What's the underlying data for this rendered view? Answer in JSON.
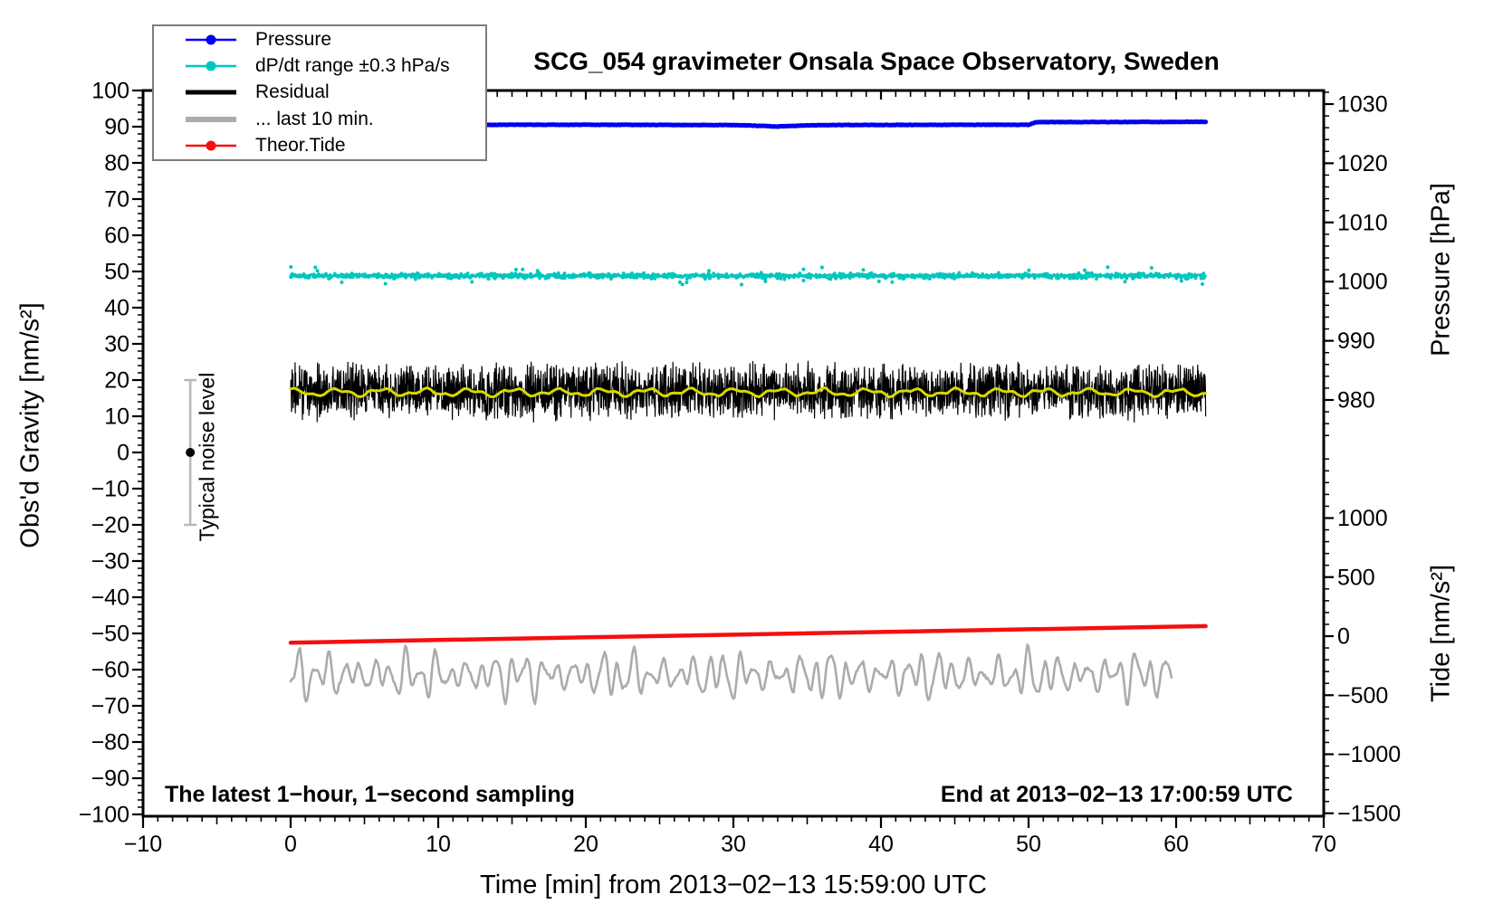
{
  "title": "SCG_054 gravimeter Onsala Space Observatory, Sweden",
  "annotations": {
    "sampling": "The latest 1−hour, 1−second sampling",
    "end_time": "End at 2013−02−13 17:00:59 UTC",
    "noise_level": "Typical noise level"
  },
  "axes": {
    "x": {
      "label": "Time [min] from 2013−02−13 15:59:00 UTC",
      "range": [
        -10,
        70
      ],
      "ticks": [
        -10,
        0,
        10,
        20,
        30,
        40,
        50,
        60,
        70
      ],
      "minor_step": 1,
      "medium_step": 5
    },
    "gravity": {
      "label": "Obs'd Gravity [nm/s²]",
      "range": [
        -100,
        100
      ],
      "ticks": [
        100,
        90,
        80,
        70,
        60,
        50,
        40,
        30,
        20,
        10,
        0,
        -10,
        -20,
        -30,
        -40,
        -50,
        -60,
        -70,
        -80,
        -90,
        -100
      ],
      "minor_step": 2
    },
    "pressure": {
      "label": "Pressure [hPa]",
      "ticks": [
        1030,
        1020,
        1010,
        1000,
        990,
        980
      ],
      "minor_step": 2
    },
    "tide": {
      "label": "Tide [nm/s²]",
      "ticks": [
        1000,
        500,
        0,
        -500,
        -1000,
        -1500
      ],
      "minor_step": 100
    }
  },
  "legend": {
    "entries": [
      {
        "label": "Pressure",
        "color": "#0000F0",
        "thick": 2.5,
        "dot": true
      },
      {
        "label": "dP/dt range ±0.3 hPa/s",
        "color": "#00C6BE",
        "thick": 2.5,
        "dot": true
      },
      {
        "label": "Residual",
        "color": "#000000",
        "thick": 5,
        "dot": false
      },
      {
        "label": "... last 10 min.",
        "color": "#ABABAB",
        "thick": 6,
        "dot": false
      },
      {
        "label": "Theor.Tide",
        "color": "#F50F0F",
        "thick": 2.5,
        "dot": true
      }
    ]
  },
  "chart_data": {
    "type": "line",
    "title": "SCG_054 gravimeter Onsala Space Observatory, Sweden",
    "xlabel": "Time [min] from 2013−02−13 15:59:00 UTC",
    "x_range_min": [
      -10,
      70
    ],
    "grid": false,
    "legend_position": "top-left",
    "y_axes": {
      "gravity_nm_s2": {
        "label": "Obs'd Gravity [nm/s²]",
        "range": [
          -100,
          100
        ]
      },
      "pressure_hPa": {
        "label": "Pressure [hPa]",
        "visible_ticks": [
          1030,
          980
        ]
      },
      "tide_nm_s2": {
        "label": "Tide [nm/s²]",
        "visible_ticks": [
          1000,
          -1500
        ]
      }
    },
    "series": [
      {
        "name": "Pressure",
        "axis": "pressure_hPa",
        "color": "#0000F0",
        "line_width": 5,
        "t_min": [
          0,
          10,
          20,
          30,
          31.5,
          33,
          34.5,
          36,
          45,
          50,
          50.5,
          62
        ],
        "values_hPa": [
          1026.5,
          1026.5,
          1026.5,
          1026.45,
          1026.35,
          1026.2,
          1026.35,
          1026.45,
          1026.5,
          1026.5,
          1026.95,
          1027.0
        ],
        "noise_sd_hPa": 0.04
      },
      {
        "name": "dP/dt range ±0.3 hPa/s",
        "axis": "gravity_nm_s2",
        "color": "#00C6BE",
        "style": "fuzzy-dotted-band",
        "t_range": [
          0,
          62
        ],
        "mean": 48.8,
        "noise_sd": 0.6
      },
      {
        "name": "Residual",
        "axis": "gravity_nm_s2",
        "color": "#000000",
        "style": "dense-1s-noise",
        "t_range": [
          0,
          62
        ],
        "mean": 16.8,
        "peak_amplitude": 8.2
      },
      {
        "name": "Residual smoothed (yellow overlay)",
        "axis": "gravity_nm_s2",
        "color": "#D8D800",
        "t_range": [
          0,
          62
        ],
        "mean": 16.6,
        "wiggle_amplitude": 1.2
      },
      {
        "name": "... last 10 min.",
        "axis": "gravity_nm_s2",
        "color": "#ABABAB",
        "style": "smooth-oscillation",
        "t_range": [
          0,
          59.7
        ],
        "mean": -61.5,
        "oscillation_amplitude": 7,
        "period_min": 1.0
      },
      {
        "name": "Theor.Tide",
        "axis": "tide_nm_s2",
        "color": "#F50F0F",
        "line_width": 4.5,
        "t_min": [
          0,
          62
        ],
        "values_tide": [
          -55,
          85
        ],
        "gravity_axis_equivalent": [
          -52.5,
          -48.1
        ]
      }
    ],
    "noise_marker": {
      "label": "Typical noise level",
      "t_min": -6.8,
      "gravity_center": 0,
      "gravity_half_range": 20
    }
  }
}
